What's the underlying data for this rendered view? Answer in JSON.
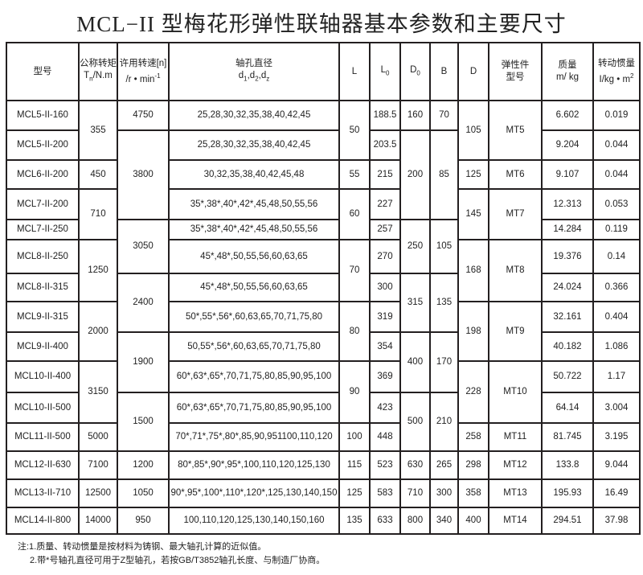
{
  "title": "MCL−II 型梅花形弹性联轴器基本参数和主要尺寸",
  "header": {
    "model": "型号",
    "torque_l1": "公称转矩",
    "torque_l2a": "T",
    "torque_sub": "n",
    "torque_l2b": "/N.m",
    "speed_l1": "许用转速[n]",
    "speed_l2": "/r • min",
    "speed_sup": "-1",
    "bore_l1": "轴孔直径",
    "bore_l2": "d",
    "bore_s1": "1",
    "bore_c1": ",d",
    "bore_s2": "2",
    "bore_c2": ",d",
    "bore_s3": "z",
    "L": "L",
    "L0": "L",
    "L0_sub": "0",
    "D0": "D",
    "D0_sub": "0",
    "B": "B",
    "D": "D",
    "elastic_l1": "弹性件",
    "elastic_l2": "型号",
    "mass_l1": "质量",
    "mass_l2": "m/ kg",
    "inertia_l1": "转动惯量",
    "inertia_l2": "I/kg • m",
    "inertia_sup": "2"
  },
  "rows": [
    [
      {
        "t": "MCL5-II-160"
      },
      {
        "t": "355",
        "span": 2
      },
      {
        "t": "4750"
      },
      {
        "t": "25,28,30,32,35,38,40,42,45"
      },
      {
        "t": "50",
        "span": 2
      },
      {
        "t": "188.5"
      },
      {
        "t": "160"
      },
      {
        "t": "70"
      },
      {
        "t": "105",
        "span": 2
      },
      {
        "t": "MT5",
        "span": 2
      },
      {
        "t": "6.602"
      },
      {
        "t": "0.019"
      }
    ],
    [
      {
        "t": "MCL5-II-200"
      },
      {
        "t": "3800",
        "span": 3
      },
      {
        "t": "25,28,30,32,35,38,40,42,45"
      },
      {
        "t": "203.5"
      },
      {
        "t": "200",
        "span": 3
      },
      {
        "t": "85",
        "span": 3
      },
      {
        "t": "9.204"
      },
      {
        "t": "0.044"
      }
    ],
    [
      {
        "t": "MCL6-II-200"
      },
      {
        "t": "450"
      },
      {
        "t": "30,32,35,38,40,42,45,48"
      },
      {
        "t": "55"
      },
      {
        "t": "215"
      },
      {
        "t": "125"
      },
      {
        "t": "MT6"
      },
      {
        "t": "9.107"
      },
      {
        "t": "0.044"
      }
    ],
    [
      {
        "t": "MCL7-II-200"
      },
      {
        "t": "710",
        "span": 2
      },
      {
        "t": "35*,38*,40*,42*,45,48,50,55,56"
      },
      {
        "t": "60",
        "span": 2
      },
      {
        "t": "227"
      },
      {
        "t": "145",
        "span": 2
      },
      {
        "t": "MT7",
        "span": 2
      },
      {
        "t": "12.313"
      },
      {
        "t": "0.053"
      }
    ],
    [
      {
        "t": "MCL7-II-250"
      },
      {
        "t": "3050",
        "span": 2
      },
      {
        "t": "35*,38*,40*,42*,45,48,50,55,56"
      },
      {
        "t": "257"
      },
      {
        "t": "250",
        "span": 2
      },
      {
        "t": "105",
        "span": 2
      },
      {
        "t": "14.284"
      },
      {
        "t": "0.119"
      }
    ],
    [
      {
        "t": "MCL8-II-250"
      },
      {
        "t": "1250",
        "span": 2
      },
      {
        "t": "45*,48*,50,55,56,60,63,65"
      },
      {
        "t": "70",
        "span": 2
      },
      {
        "t": "270"
      },
      {
        "t": "168",
        "span": 2
      },
      {
        "t": "MT8",
        "span": 2
      },
      {
        "t": "19.376"
      },
      {
        "t": "0.14"
      }
    ],
    [
      {
        "t": "MCL8-II-315"
      },
      {
        "t": "2400",
        "span": 2
      },
      {
        "t": "45*,48*,50,55,56,60,63,65"
      },
      {
        "t": "300"
      },
      {
        "t": "315",
        "span": 2
      },
      {
        "t": "135",
        "span": 2
      },
      {
        "t": "24.024"
      },
      {
        "t": "0.366"
      }
    ],
    [
      {
        "t": "MCL9-II-315"
      },
      {
        "t": "2000",
        "span": 2
      },
      {
        "t": "50*,55*,56*,60,63,65,70,71,75,80"
      },
      {
        "t": "80",
        "span": 2
      },
      {
        "t": "319"
      },
      {
        "t": "198",
        "span": 2
      },
      {
        "t": "MT9",
        "span": 2
      },
      {
        "t": "32.161"
      },
      {
        "t": "0.404"
      }
    ],
    [
      {
        "t": "MCL9-II-400"
      },
      {
        "t": "1900",
        "span": 2
      },
      {
        "t": "50,55*,56*,60,63,65,70,71,75,80"
      },
      {
        "t": "354"
      },
      {
        "t": "400",
        "span": 2
      },
      {
        "t": "170",
        "span": 2
      },
      {
        "t": "40.182"
      },
      {
        "t": "1.086"
      }
    ],
    [
      {
        "t": "MCL10-II-400"
      },
      {
        "t": "3150",
        "span": 2
      },
      {
        "t": "60*,63*,65*,70,71,75,80,85,90,95,100"
      },
      {
        "t": "90",
        "span": 2
      },
      {
        "t": "369"
      },
      {
        "t": "228",
        "span": 2
      },
      {
        "t": "MT10",
        "span": 2
      },
      {
        "t": "50.722"
      },
      {
        "t": "1.17"
      }
    ],
    [
      {
        "t": "MCL10-II-500"
      },
      {
        "t": "1500",
        "span": 2
      },
      {
        "t": "60*,63*,65*,70,71,75,80,85,90,95,100"
      },
      {
        "t": "423"
      },
      {
        "t": "500",
        "span": 2
      },
      {
        "t": "210",
        "span": 2
      },
      {
        "t": "64.14"
      },
      {
        "t": "3.004"
      }
    ],
    [
      {
        "t": "MCL11-II-500"
      },
      {
        "t": "5000"
      },
      {
        "t": "70*,71*,75*,80*,85,90,951100,110,120"
      },
      {
        "t": "100"
      },
      {
        "t": "448"
      },
      {
        "t": "258"
      },
      {
        "t": "MT11"
      },
      {
        "t": "81.745"
      },
      {
        "t": "3.195"
      }
    ],
    [
      {
        "t": "MCL12-II-630"
      },
      {
        "t": "7100"
      },
      {
        "t": "1200"
      },
      {
        "t": "80*,85*,90*,95*,100,110,120,125,130"
      },
      {
        "t": "115"
      },
      {
        "t": "523"
      },
      {
        "t": "630"
      },
      {
        "t": "265"
      },
      {
        "t": "298"
      },
      {
        "t": "MT12"
      },
      {
        "t": "133.8"
      },
      {
        "t": "9.044"
      }
    ],
    [
      {
        "t": "MCL13-II-710"
      },
      {
        "t": "12500"
      },
      {
        "t": "1050"
      },
      {
        "t": "90*,95*,100*,110*,120*,125,130,140,150"
      },
      {
        "t": "125"
      },
      {
        "t": "583"
      },
      {
        "t": "710"
      },
      {
        "t": "300"
      },
      {
        "t": "358"
      },
      {
        "t": "MT13"
      },
      {
        "t": "195.93"
      },
      {
        "t": "16.49"
      }
    ],
    [
      {
        "t": "MCL14-II-800"
      },
      {
        "t": "14000"
      },
      {
        "t": "950"
      },
      {
        "t": "100,110,120,125,130,140,150,160"
      },
      {
        "t": "135"
      },
      {
        "t": "633"
      },
      {
        "t": "800"
      },
      {
        "t": "340"
      },
      {
        "t": "400"
      },
      {
        "t": "MT14"
      },
      {
        "t": "294.51"
      },
      {
        "t": "37.98"
      }
    ]
  ],
  "notes": [
    "注:1.质量、转动惯量是按材料为铸钢、最大轴孔计算的近似值。",
    "2.带*号轴孔直径可用于Z型轴孔，若按GB/T3852轴孔长度、与制造厂协商。"
  ]
}
